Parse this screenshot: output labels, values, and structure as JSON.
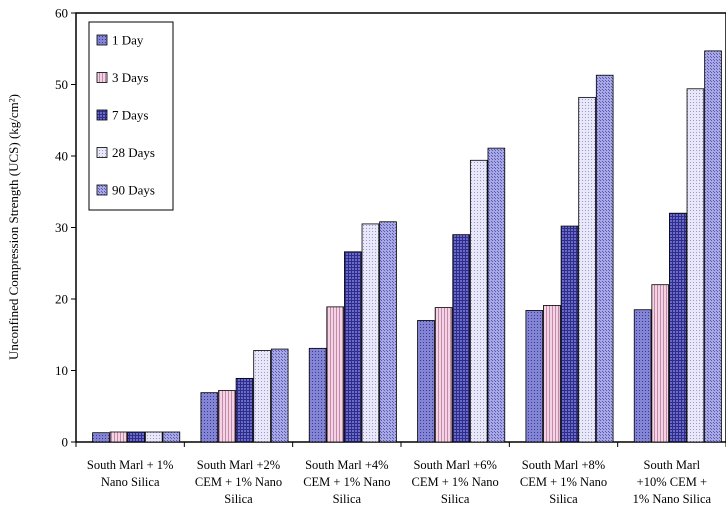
{
  "chart_data": {
    "type": "bar",
    "title": "",
    "xlabel": "",
    "ylabel": "Unconfined Compression Strength (UCS) (kg/cm²)",
    "ylim": [
      0,
      60
    ],
    "yticks": [
      0,
      10,
      20,
      30,
      40,
      50,
      60
    ],
    "grid": false,
    "legend_position": "top-left",
    "categories": [
      [
        "South Marl + 1%",
        "Nano Silica"
      ],
      [
        "South Marl +2%",
        "CEM + 1% Nano",
        "Silica"
      ],
      [
        "South Marl +4%",
        "CEM + 1% Nano",
        "Silica"
      ],
      [
        "South Marl +6%",
        "CEM + 1% Nano",
        "Silica"
      ],
      [
        "South Marl +8%",
        "CEM + 1% Nano",
        "Silica"
      ],
      [
        "South Marl",
        "+10% CEM +",
        "1% Nano Silica"
      ]
    ],
    "series": [
      {
        "name": "1 Day",
        "color": "#7a7acc",
        "values": [
          1.3,
          6.9,
          13.1,
          17.0,
          18.4,
          18.5
        ]
      },
      {
        "name": "3 Days",
        "color": "#f0cce0",
        "values": [
          1.4,
          7.2,
          18.9,
          18.8,
          19.1,
          22.0
        ]
      },
      {
        "name": "7 Days",
        "color": "#5f5fc0",
        "values": [
          1.4,
          8.9,
          26.6,
          29.0,
          30.2,
          32.0
        ]
      },
      {
        "name": "28 Days",
        "color": "#dcdcf2",
        "values": [
          1.4,
          12.8,
          30.5,
          39.4,
          48.2,
          49.4
        ]
      },
      {
        "name": "90 Days",
        "color": "#9d9de0",
        "values": [
          1.4,
          13.0,
          30.8,
          41.1,
          51.3,
          54.7
        ]
      }
    ]
  }
}
